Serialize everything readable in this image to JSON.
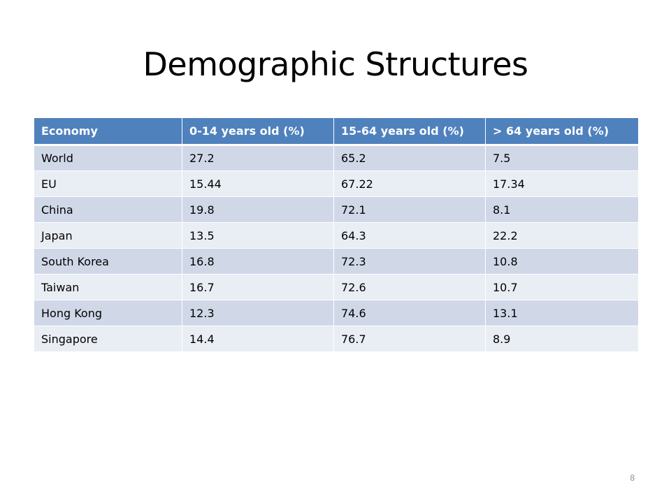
{
  "slide": {
    "title": "Demographic Structures",
    "page_number": "8"
  },
  "table": {
    "headers": [
      "Economy",
      "0-14 years old (%)",
      "15-64 years old (%)",
      "> 64 years old (%)"
    ],
    "rows": [
      [
        "World",
        "27.2",
        "65.2",
        "7.5"
      ],
      [
        "EU",
        "15.44",
        "67.22",
        "17.34"
      ],
      [
        "China",
        "19.8",
        "72.1",
        "8.1"
      ],
      [
        "Japan",
        "13.5",
        "64.3",
        "22.2"
      ],
      [
        "South Korea",
        "16.8",
        "72.3",
        "10.8"
      ],
      [
        "Taiwan",
        "16.7",
        "72.6",
        "10.7"
      ],
      [
        "Hong Kong",
        "12.3",
        "74.6",
        "13.1"
      ],
      [
        "Singapore",
        "14.4",
        "76.7",
        "8.9"
      ]
    ]
  },
  "colors": {
    "header_fill": "#4f81bd",
    "row_band_dark": "#d0d8e8",
    "row_band_light": "#e9edf4"
  }
}
